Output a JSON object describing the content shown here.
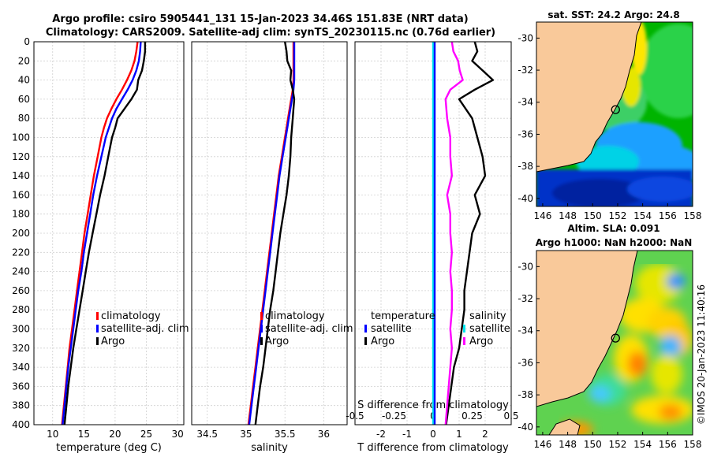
{
  "titles": {
    "line1": "Argo profile: csiro 5905441_131 15-Jan-2023 34.46S 151.83E (NRT data)",
    "line2": "Climatology: CARS2009. Satellite-adj clim: synTS_20230115.nc (0.76d earlier)",
    "sst": "sat. SST: 24.2 Argo: 24.8",
    "sla1": "Altim. SLA: 0.091",
    "sla2": "Argo h1000: NaN h2000: NaN"
  },
  "copyright": "©IMOS 20-Jan-2023 11:40:16",
  "colors": {
    "climatology": "#ff0000",
    "satellite": "#0000ff",
    "argo": "#000000",
    "t_sat": "#00e5ee",
    "s_sat": "#ff00ff",
    "land": "#f9c99a"
  },
  "chart_data": [
    {
      "id": "temperature",
      "type": "line",
      "xlabel": "temperature (deg C)",
      "ylabel": "",
      "xlim": [
        7,
        31
      ],
      "ylim": [
        400,
        0
      ],
      "xticks": [
        "10",
        "15",
        "20",
        "25",
        "30"
      ],
      "yticks": [
        "0",
        "20",
        "40",
        "60",
        "80",
        "100",
        "120",
        "140",
        "160",
        "180",
        "200",
        "220",
        "240",
        "260",
        "280",
        "300",
        "320",
        "340",
        "360",
        "380",
        "400"
      ],
      "depth": [
        0,
        10,
        20,
        30,
        40,
        50,
        60,
        70,
        80,
        90,
        100,
        120,
        140,
        160,
        180,
        200,
        220,
        240,
        260,
        280,
        300,
        320,
        340,
        360,
        380,
        400
      ],
      "series": [
        {
          "name": "climatology",
          "values": [
            23.6,
            23.4,
            23.1,
            22.6,
            21.9,
            21.1,
            20.2,
            19.4,
            18.7,
            18.2,
            17.8,
            17.2,
            16.6,
            16.1,
            15.6,
            15.1,
            14.7,
            14.3,
            13.9,
            13.5,
            13.1,
            12.7,
            12.4,
            12.1,
            11.8,
            11.5
          ]
        },
        {
          "name": "satellite-adj. clim",
          "values": [
            24.1,
            24.0,
            23.8,
            23.4,
            22.8,
            22.0,
            21.1,
            20.2,
            19.5,
            19.0,
            18.5,
            17.8,
            17.1,
            16.5,
            16.0,
            15.5,
            15.0,
            14.6,
            14.1,
            13.7,
            13.3,
            12.9,
            12.5,
            12.2,
            11.9,
            11.6
          ]
        },
        {
          "name": "Argo",
          "values": [
            24.8,
            24.8,
            24.6,
            24.3,
            23.7,
            23.5,
            22.6,
            21.5,
            20.4,
            20.0,
            19.5,
            18.9,
            18.3,
            17.6,
            17.0,
            16.4,
            15.8,
            15.3,
            14.8,
            14.3,
            13.8,
            13.3,
            12.9,
            12.5,
            12.2,
            11.9
          ]
        }
      ],
      "legend": [
        "climatology",
        "satellite-adj. clim",
        "Argo"
      ],
      "legend_position": "center-right"
    },
    {
      "id": "salinity",
      "type": "line",
      "xlabel": "salinity",
      "xlim": [
        34.3,
        36.3
      ],
      "ylim": [
        400,
        0
      ],
      "xticks": [
        "34.5",
        "35",
        "35.5",
        "36"
      ],
      "depth": [
        0,
        10,
        20,
        30,
        40,
        50,
        60,
        70,
        80,
        90,
        100,
        120,
        140,
        160,
        180,
        200,
        220,
        240,
        260,
        280,
        300,
        320,
        340,
        360,
        380,
        400
      ],
      "series": [
        {
          "name": "climatology",
          "values": [
            35.61,
            35.61,
            35.61,
            35.61,
            35.61,
            35.6,
            35.58,
            35.56,
            35.54,
            35.52,
            35.5,
            35.46,
            35.42,
            35.39,
            35.36,
            35.33,
            35.3,
            35.27,
            35.24,
            35.21,
            35.18,
            35.15,
            35.12,
            35.09,
            35.06,
            35.03
          ]
        },
        {
          "name": "satellite-adj. clim",
          "values": [
            35.62,
            35.62,
            35.62,
            35.62,
            35.62,
            35.61,
            35.59,
            35.57,
            35.55,
            35.53,
            35.51,
            35.47,
            35.43,
            35.4,
            35.37,
            35.34,
            35.31,
            35.28,
            35.25,
            35.22,
            35.19,
            35.16,
            35.13,
            35.1,
            35.07,
            35.04
          ]
        },
        {
          "name": "Argo",
          "values": [
            35.5,
            35.52,
            35.53,
            35.58,
            35.57,
            35.6,
            35.62,
            35.61,
            35.6,
            35.59,
            35.58,
            35.57,
            35.55,
            35.52,
            35.48,
            35.44,
            35.41,
            35.38,
            35.35,
            35.31,
            35.28,
            35.25,
            35.22,
            35.18,
            35.15,
            35.12
          ]
        }
      ],
      "legend": [
        "climatology",
        "satellite-adj. clim",
        "Argo"
      ],
      "legend_position": "center-right"
    },
    {
      "id": "difference",
      "type": "line",
      "xlabel": "T difference from climatology",
      "top_label": "S difference from climatology",
      "xlim": [
        -3,
        3
      ],
      "ylim": [
        400,
        0
      ],
      "xticks": [
        "-2",
        "-1",
        "0",
        "1",
        "2"
      ],
      "top_xticks": [
        "-0.5",
        "-0.25",
        "0",
        "0.25",
        "0.5"
      ],
      "depth": [
        0,
        10,
        20,
        30,
        40,
        50,
        60,
        80,
        100,
        120,
        140,
        160,
        180,
        200,
        220,
        240,
        260,
        280,
        300,
        320,
        340,
        360,
        380,
        400
      ],
      "series": [
        {
          "name": "temperature satellite",
          "values": [
            0.0,
            0.0,
            0.0,
            0.0,
            0.0,
            0.0,
            0.0,
            0.0,
            0.0,
            0.0,
            0.0,
            0.0,
            0.0,
            0.0,
            0.0,
            0.0,
            0.0,
            0.0,
            0.0,
            0.0,
            0.0,
            0.0,
            0.0,
            0.0
          ]
        },
        {
          "name": "temperature Argo",
          "values": [
            1.6,
            1.7,
            1.5,
            1.9,
            2.3,
            1.6,
            1.0,
            1.5,
            1.7,
            1.9,
            2.0,
            1.6,
            1.8,
            1.5,
            1.4,
            1.3,
            1.2,
            1.2,
            1.1,
            1.0,
            0.8,
            0.7,
            0.6,
            0.5
          ]
        },
        {
          "name": "salinity satellite",
          "values": [
            0.01,
            0.01,
            0.01,
            0.01,
            0.01,
            0.01,
            0.01,
            0.01,
            0.01,
            0.01,
            0.01,
            0.01,
            0.01,
            0.01,
            0.01,
            0.01,
            0.01,
            0.01,
            0.01,
            0.01,
            0.01,
            0.01,
            0.01,
            0.01
          ]
        },
        {
          "name": "salinity Argo",
          "values": [
            0.12,
            0.13,
            0.16,
            0.17,
            0.19,
            0.11,
            0.08,
            0.09,
            0.11,
            0.11,
            0.12,
            0.09,
            0.11,
            0.11,
            0.12,
            0.11,
            0.12,
            0.12,
            0.11,
            0.12,
            0.11,
            0.1,
            0.09,
            0.08
          ]
        }
      ],
      "legend_left": {
        "title": "temperature",
        "items": [
          "satellite",
          "Argo"
        ]
      },
      "legend_right": {
        "title": "salinity",
        "items": [
          "satellite",
          "Argo"
        ]
      }
    },
    {
      "id": "sst_map",
      "type": "heatmap",
      "title": "sat. SST: 24.2 Argo: 24.8",
      "xticks": [
        "146",
        "148",
        "150",
        "152",
        "154",
        "156",
        "158"
      ],
      "yticks": [
        "-30",
        "-32",
        "-34",
        "-36",
        "-38",
        "-40"
      ],
      "xlim": [
        145.5,
        158
      ],
      "ylim": [
        -40.5,
        -29
      ],
      "profile_location": {
        "lon": 151.83,
        "lat": -34.46
      }
    },
    {
      "id": "sla_map",
      "type": "heatmap",
      "title": "Altim. SLA: 0.091",
      "subtitle": "Argo h1000: NaN h2000: NaN",
      "xticks": [
        "146",
        "148",
        "150",
        "152",
        "154",
        "156",
        "158"
      ],
      "yticks": [
        "-30",
        "-32",
        "-34",
        "-36",
        "-38",
        "-40"
      ],
      "xlim": [
        145.5,
        158
      ],
      "ylim": [
        -40.5,
        -29
      ],
      "profile_location": {
        "lon": 151.83,
        "lat": -34.46
      }
    }
  ]
}
